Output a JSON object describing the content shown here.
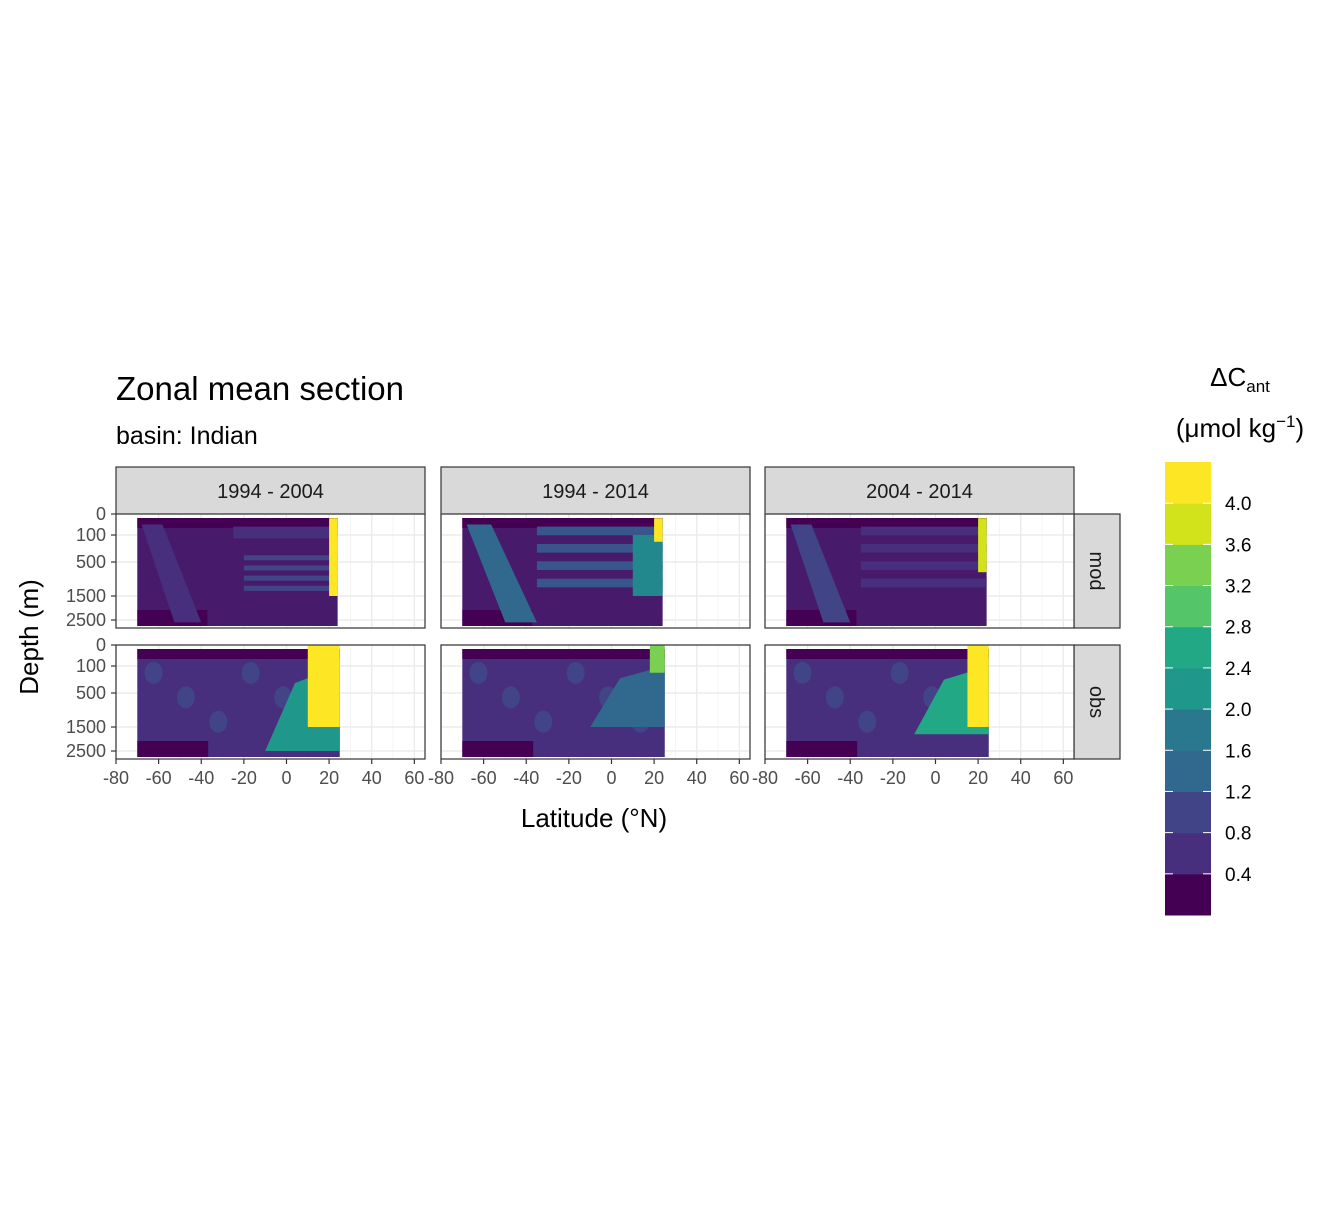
{
  "chart_data": {
    "type": "heatmap",
    "title": "Zonal mean section",
    "subtitle": "basin: Indian",
    "xlabel": "Latitude (°N)",
    "ylabel": "Depth (m)",
    "x_ticks": [
      "-80",
      "-60",
      "-40",
      "-20",
      "0",
      "20",
      "40",
      "60"
    ],
    "x_tick_values": [
      -80,
      -60,
      -40,
      -20,
      0,
      20,
      40,
      60
    ],
    "xlim": [
      -80,
      65
    ],
    "y_ticks": [
      "0",
      "100",
      "500",
      "1500",
      "2500"
    ],
    "y_tick_values": [
      0,
      100,
      500,
      1500,
      2500
    ],
    "columns": [
      "1994 - 2004",
      "1994 - 2014",
      "2004 - 2014"
    ],
    "rows": [
      "mod",
      "obs"
    ],
    "legend": {
      "title_main": "ΔC",
      "title_sub": "ant",
      "units_text": "(μmol kg",
      "units_sup": "−1",
      "units_close": ")",
      "position": "right",
      "labels": [
        "4.0",
        "3.6",
        "3.2",
        "2.8",
        "2.4",
        "2.0",
        "1.6",
        "1.2",
        "0.8",
        "0.4"
      ],
      "label_values": [
        4.0,
        3.6,
        3.2,
        2.8,
        2.4,
        2.0,
        1.6,
        1.2,
        0.8,
        0.4
      ],
      "colors": [
        "#440154",
        "#481a6c",
        "#472f7d",
        "#414487",
        "#39568c",
        "#31688e",
        "#2a788e",
        "#23888e",
        "#1f988b",
        "#22a884",
        "#35b779",
        "#54c568",
        "#7ad151",
        "#a5db36",
        "#d2e21b",
        "#fde725"
      ]
    },
    "panels": [
      {
        "column": "1994 - 2004",
        "row": "mod",
        "lat_range": [
          -70,
          24
        ],
        "features": [
          {
            "level": 2,
            "lat": [
              -68,
              -40
            ],
            "depth": [
              50,
              2600
            ],
            "shape": "diagonal-band"
          },
          {
            "level": 2,
            "lat": [
              -25,
              24
            ],
            "depth": [
              60,
              150
            ],
            "shape": "layer"
          },
          {
            "level": 3,
            "lat": [
              -20,
              24
            ],
            "depth": [
              400,
              1500
            ],
            "shape": "layers"
          },
          {
            "level": 15,
            "lat": [
              20,
              24
            ],
            "depth": [
              20,
              1500
            ],
            "shape": "edge"
          }
        ]
      },
      {
        "column": "1994 - 2014",
        "row": "mod",
        "lat_range": [
          -70,
          24
        ],
        "features": [
          {
            "level": 5,
            "lat": [
              -68,
              -35
            ],
            "depth": [
              50,
              2600
            ],
            "shape": "diagonal-band"
          },
          {
            "level": 4,
            "lat": [
              -35,
              24
            ],
            "depth": [
              60,
              1500
            ],
            "shape": "layers"
          },
          {
            "level": 7,
            "lat": [
              10,
              24
            ],
            "depth": [
              100,
              1500
            ],
            "shape": "edge"
          },
          {
            "level": 15,
            "lat": [
              20,
              24
            ],
            "depth": [
              20,
              200
            ],
            "shape": "edge"
          }
        ]
      },
      {
        "column": "2004 - 2014",
        "row": "mod",
        "lat_range": [
          -70,
          24
        ],
        "features": [
          {
            "level": 3,
            "lat": [
              -68,
              -40
            ],
            "depth": [
              50,
              2600
            ],
            "shape": "diagonal-band"
          },
          {
            "level": 2,
            "lat": [
              -35,
              24
            ],
            "depth": [
              60,
              1500
            ],
            "shape": "layers"
          },
          {
            "level": 14,
            "lat": [
              20,
              24
            ],
            "depth": [
              20,
              800
            ],
            "shape": "edge"
          }
        ]
      },
      {
        "column": "1994 - 2004",
        "row": "obs",
        "lat_range": [
          -70,
          25
        ],
        "features": [
          {
            "level": 3,
            "lat": [
              -70,
              25
            ],
            "depth": [
              40,
              2500
            ],
            "shape": "patches"
          },
          {
            "level": 8,
            "lat": [
              -10,
              25
            ],
            "depth": [
              100,
              2500
            ],
            "shape": "plume"
          },
          {
            "level": 15,
            "lat": [
              10,
              25
            ],
            "depth": [
              0,
              1500
            ],
            "shape": "plume-core"
          }
        ]
      },
      {
        "column": "1994 - 2014",
        "row": "obs",
        "lat_range": [
          -70,
          25
        ],
        "features": [
          {
            "level": 3,
            "lat": [
              -70,
              25
            ],
            "depth": [
              40,
              2500
            ],
            "shape": "patches"
          },
          {
            "level": 5,
            "lat": [
              -10,
              25
            ],
            "depth": [
              100,
              1500
            ],
            "shape": "plume"
          },
          {
            "level": 12,
            "lat": [
              18,
              25
            ],
            "depth": [
              0,
              200
            ],
            "shape": "plume-core"
          }
        ]
      },
      {
        "column": "2004 - 2014",
        "row": "obs",
        "lat_range": [
          -70,
          25
        ],
        "features": [
          {
            "level": 3,
            "lat": [
              -70,
              25
            ],
            "depth": [
              40,
              2500
            ],
            "shape": "patches"
          },
          {
            "level": 9,
            "lat": [
              -10,
              25
            ],
            "depth": [
              100,
              1800
            ],
            "shape": "plume"
          },
          {
            "level": 15,
            "lat": [
              15,
              25
            ],
            "depth": [
              0,
              1500
            ],
            "shape": "plume-core"
          }
        ]
      }
    ]
  }
}
